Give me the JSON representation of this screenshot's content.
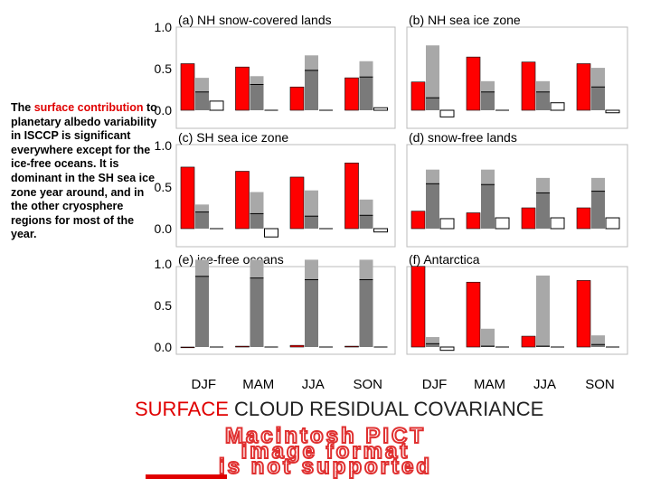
{
  "description": {
    "before": "The ",
    "highlight": "surface contribution",
    "after": " to planetary albedo variability in ISCCP is significant everywhere except for the ice-free oceans.  It is dominant in the SH sea ice zone year around, and in the other cryosphere regions for most of the year."
  },
  "legend": {
    "surface": "SURFACE",
    "cloud": " CLOUD",
    "residual": "  RESIDUAL",
    "covariance": " COVARIANCE"
  },
  "placeholder": {
    "line1": "Macintosh PICT",
    "line2": "image format",
    "line3": "is not supported"
  },
  "colors": {
    "surface": "#ff0000",
    "cloud": "#a8a8a8",
    "residual": "#7a7a7a",
    "covariance": "#ffffff",
    "accent": "#e00000"
  },
  "chart_data": {
    "type": "bar",
    "categories": [
      "DJF",
      "MAM",
      "JJA",
      "SON"
    ],
    "yticks": [
      "1.0",
      "0.5",
      "0.0"
    ],
    "ylim": [
      -0.1,
      1.05
    ],
    "series": [
      {
        "name": "SURFACE",
        "key": "surface"
      },
      {
        "name": "CLOUD",
        "key": "cloud"
      },
      {
        "name": "RESIDUAL",
        "key": "residual"
      },
      {
        "name": "COVARIANCE",
        "key": "covariance"
      }
    ],
    "panels": [
      {
        "title": "(a) NH snow-covered lands",
        "surface": [
          0.56,
          0.52,
          0.28,
          0.39
        ],
        "cloud": [
          0.39,
          0.41,
          0.66,
          0.59
        ],
        "residual": [
          0.22,
          0.31,
          0.48,
          0.4
        ],
        "covariance": [
          0.11,
          0.0,
          0.0,
          0.03
        ]
      },
      {
        "title": "(b) NH sea ice zone",
        "surface": [
          0.34,
          0.64,
          0.58,
          0.56
        ],
        "cloud": [
          0.78,
          0.35,
          0.35,
          0.51
        ],
        "residual": [
          0.15,
          0.22,
          0.22,
          0.28
        ],
        "covariance": [
          -0.08,
          0.0,
          0.09,
          -0.03
        ]
      },
      {
        "title": "(c) SH sea ice zone",
        "surface": [
          0.74,
          0.69,
          0.62,
          0.79
        ],
        "cloud": [
          0.29,
          0.44,
          0.46,
          0.35
        ],
        "residual": [
          0.2,
          0.18,
          0.15,
          0.16
        ],
        "covariance": [
          0.0,
          -0.1,
          0.0,
          -0.04
        ]
      },
      {
        "title": "(d) snow-free lands",
        "surface": [
          0.21,
          0.19,
          0.25,
          0.25
        ],
        "cloud": [
          0.71,
          0.71,
          0.61,
          0.61
        ],
        "residual": [
          0.54,
          0.53,
          0.43,
          0.45
        ],
        "covariance": [
          0.12,
          0.13,
          0.13,
          0.13
        ]
      },
      {
        "title": "(e) ice-free oceans",
        "surface": [
          0.0,
          0.01,
          0.02,
          0.01
        ],
        "cloud": [
          1.06,
          1.06,
          1.06,
          1.06
        ],
        "residual": [
          0.85,
          0.83,
          0.81,
          0.81
        ],
        "covariance": [
          0.0,
          0.0,
          0.0,
          0.0
        ]
      },
      {
        "title": "(f) Antarctica",
        "surface": [
          0.97,
          0.78,
          0.13,
          0.8
        ],
        "cloud": [
          0.12,
          0.22,
          0.86,
          0.14
        ],
        "residual": [
          0.04,
          0.01,
          0.01,
          0.03
        ],
        "covariance": [
          -0.04,
          0.0,
          0.0,
          0.0
        ]
      }
    ]
  }
}
